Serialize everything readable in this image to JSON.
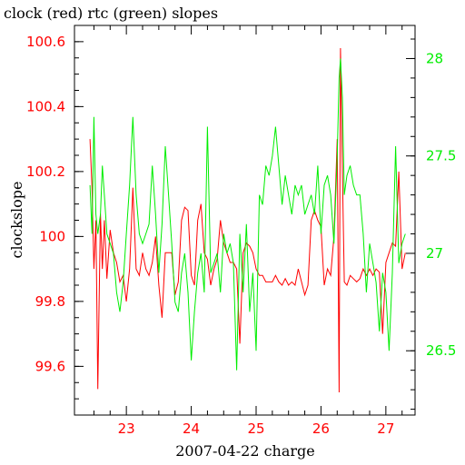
{
  "chart_data": {
    "type": "line",
    "title": "clock (red) rtc (green) slopes",
    "xlabel": "2007-04-22 charge",
    "ylabel": "clockslope",
    "xlim": [
      22.2,
      27.45
    ],
    "ylim_left": [
      99.45,
      100.65
    ],
    "ylim_right": [
      26.17,
      28.17
    ],
    "x_ticks": [
      23,
      24,
      25,
      26,
      27
    ],
    "x_tick_labels": [
      "23",
      "24",
      "25",
      "26",
      "27"
    ],
    "y_left_ticks": [
      99.6,
      99.8,
      100,
      100.2,
      100.4,
      100.6
    ],
    "y_left_tick_labels": [
      "99.6",
      "99.8",
      "100",
      "100.2",
      "100.4",
      "100.6"
    ],
    "y_right_ticks": [
      26.5,
      27,
      27.5,
      28
    ],
    "y_right_tick_labels": [
      "26.5",
      "27",
      "27.5",
      "28"
    ],
    "grid": false,
    "colors": {
      "clock": "#ff0000",
      "rtc": "#00ee00",
      "axes": "#000000"
    },
    "series": [
      {
        "axis": "left",
        "color": "#ff0000",
        "x": [
          22.44,
          22.47,
          22.5,
          22.53,
          22.56,
          22.6,
          22.63,
          22.66,
          22.7,
          22.75,
          22.8,
          22.85,
          22.9,
          22.95,
          23.0,
          23.05,
          23.1,
          23.15,
          23.2,
          23.25,
          23.3,
          23.35,
          23.4,
          23.45,
          23.5,
          23.55,
          23.6,
          23.65,
          23.7,
          23.75,
          23.8,
          23.85,
          23.9,
          23.95,
          24.0,
          24.05,
          24.1,
          24.15,
          24.2,
          24.25,
          24.3,
          24.35,
          24.4,
          24.45,
          24.5,
          24.55,
          24.6,
          24.65,
          24.7,
          24.75,
          24.8,
          24.85,
          24.9,
          24.95,
          25.0,
          25.05,
          25.1,
          25.15,
          25.2,
          25.25,
          25.3,
          25.35,
          25.4,
          25.45,
          25.5,
          25.55,
          25.6,
          25.65,
          25.7,
          25.75,
          25.8,
          25.85,
          25.9,
          25.95,
          26.0,
          26.05,
          26.1,
          26.15,
          26.2,
          26.25,
          26.28,
          26.3,
          26.33,
          26.36,
          26.4,
          26.45,
          26.5,
          26.55,
          26.6,
          26.65,
          26.7,
          26.75,
          26.8,
          26.85,
          26.9,
          26.95,
          27.0,
          27.05,
          27.1,
          27.15,
          27.2,
          27.25,
          27.3
        ],
        "y": [
          100.3,
          100.15,
          99.9,
          100.05,
          99.53,
          100.07,
          99.9,
          100.05,
          99.87,
          100.02,
          99.95,
          99.92,
          99.86,
          99.88,
          99.8,
          99.9,
          100.15,
          99.9,
          99.88,
          99.95,
          99.9,
          99.88,
          99.92,
          100.0,
          99.85,
          99.75,
          99.95,
          99.95,
          99.95,
          99.82,
          99.86,
          100.05,
          100.09,
          100.08,
          99.88,
          99.85,
          100.05,
          100.1,
          99.95,
          99.93,
          99.85,
          99.9,
          99.93,
          100.05,
          99.98,
          99.95,
          99.92,
          99.92,
          99.9,
          99.67,
          99.95,
          99.98,
          99.97,
          99.95,
          99.9,
          99.88,
          99.88,
          99.86,
          99.86,
          99.86,
          99.88,
          99.86,
          99.85,
          99.87,
          99.85,
          99.86,
          99.85,
          99.9,
          99.86,
          99.82,
          99.85,
          100.05,
          100.08,
          100.05,
          100.03,
          99.85,
          99.9,
          99.88,
          100.0,
          100.3,
          99.52,
          100.58,
          100.2,
          99.86,
          99.85,
          99.88,
          99.87,
          99.86,
          99.87,
          99.9,
          99.88,
          99.9,
          99.88,
          99.9,
          99.89,
          99.7,
          99.92,
          99.95,
          99.98,
          99.97,
          100.2,
          99.9,
          99.95
        ]
      },
      {
        "axis": "right",
        "color": "#00ee00",
        "x": [
          22.44,
          22.47,
          22.5,
          22.53,
          22.56,
          22.6,
          22.63,
          22.66,
          22.7,
          22.75,
          22.8,
          22.85,
          22.9,
          22.95,
          23.0,
          23.05,
          23.1,
          23.15,
          23.2,
          23.25,
          23.3,
          23.35,
          23.4,
          23.45,
          23.5,
          23.55,
          23.6,
          23.65,
          23.7,
          23.75,
          23.8,
          23.85,
          23.9,
          23.95,
          24.0,
          24.05,
          24.1,
          24.15,
          24.2,
          24.25,
          24.3,
          24.35,
          24.4,
          24.45,
          24.5,
          24.55,
          24.6,
          24.65,
          24.7,
          24.75,
          24.8,
          24.85,
          24.9,
          24.95,
          25.0,
          25.05,
          25.1,
          25.15,
          25.2,
          25.25,
          25.3,
          25.35,
          25.4,
          25.45,
          25.5,
          25.55,
          25.6,
          25.65,
          25.7,
          25.75,
          25.8,
          25.85,
          25.9,
          25.95,
          26.0,
          26.05,
          26.1,
          26.15,
          26.2,
          26.25,
          26.28,
          26.3,
          26.33,
          26.36,
          26.4,
          26.45,
          26.5,
          26.55,
          26.6,
          26.65,
          26.7,
          26.75,
          26.8,
          26.85,
          26.9,
          26.95,
          27.0,
          27.05,
          27.1,
          27.15,
          27.2,
          27.25,
          27.3
        ],
        "y": [
          27.35,
          27.1,
          27.7,
          27.2,
          27.1,
          27.2,
          27.45,
          27.3,
          27.1,
          27.05,
          27.0,
          26.8,
          26.7,
          26.85,
          27.1,
          27.35,
          27.7,
          27.3,
          27.1,
          27.05,
          27.1,
          27.15,
          27.45,
          27.2,
          26.9,
          27.15,
          27.55,
          27.3,
          27.05,
          26.75,
          26.7,
          26.9,
          27.0,
          26.8,
          26.45,
          26.7,
          26.9,
          27.0,
          26.8,
          27.65,
          26.9,
          26.95,
          27.0,
          26.8,
          27.1,
          27.0,
          27.05,
          26.95,
          26.4,
          27.1,
          26.8,
          27.15,
          26.7,
          26.9,
          26.5,
          27.3,
          27.25,
          27.45,
          27.4,
          27.5,
          27.65,
          27.45,
          27.25,
          27.4,
          27.3,
          27.2,
          27.35,
          27.3,
          27.35,
          27.2,
          27.25,
          27.3,
          27.2,
          27.45,
          27.1,
          27.35,
          27.4,
          27.3,
          27.05,
          27.5,
          27.9,
          28.0,
          27.8,
          27.3,
          27.4,
          27.45,
          27.35,
          27.3,
          27.3,
          27.1,
          26.8,
          27.05,
          26.95,
          26.85,
          26.6,
          26.9,
          26.8,
          26.5,
          26.9,
          27.55,
          26.95,
          27.05,
          27.1
        ]
      }
    ]
  }
}
